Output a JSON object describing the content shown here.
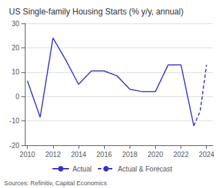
{
  "chart_data": {
    "type": "line",
    "title": "US Single-family Housing Starts (% y/y, annual)",
    "annotation": "Sources: Refinitiv, Capital Economics",
    "series": [
      {
        "name": "Actual",
        "color": "#3333cc",
        "line_style": "solid",
        "x": [
          2010,
          2011,
          2012,
          2013,
          2014,
          2015,
          2016,
          2017,
          2018,
          2019,
          2020,
          2021,
          2022,
          2023
        ],
        "values": [
          6.5,
          -8.5,
          24,
          15,
          5,
          10.5,
          10.5,
          8.5,
          3,
          2,
          2,
          13,
          13,
          -12
        ]
      },
      {
        "name": "Actual & Forecast",
        "color": "#3333cc",
        "line_style": "dashed",
        "x": [
          2023,
          2023.5,
          2024
        ],
        "values": [
          -12,
          -6,
          13
        ]
      }
    ],
    "xlim": [
      2009.8,
      2024.5
    ],
    "xticks": [
      2010,
      2012,
      2014,
      2016,
      2018,
      2020,
      2022,
      2024
    ],
    "ylim": [
      -20,
      30
    ],
    "yticks": [
      -20,
      -10,
      0,
      10,
      20,
      30
    ],
    "grid": true,
    "legend": "bottom"
  }
}
